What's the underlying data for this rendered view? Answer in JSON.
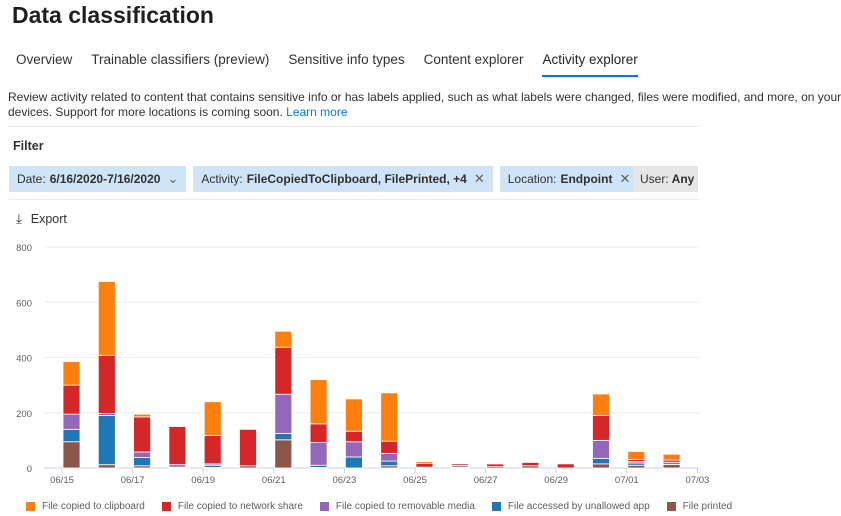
{
  "page_title": "Data classification",
  "tabs": [
    {
      "label": "Overview"
    },
    {
      "label": "Trainable classifiers (preview)"
    },
    {
      "label": "Sensitive info types"
    },
    {
      "label": "Content explorer"
    },
    {
      "label": "Activity explorer",
      "active": true
    }
  ],
  "description": {
    "line1": "Review activity related to content that contains sensitive info or has labels applied, such as what labels were changed, files were modified, and more, on your",
    "line2": "devices. Support for more locations is coming soon.",
    "link": "Learn more"
  },
  "filter": {
    "label": "Filter",
    "chips": [
      {
        "key": "Date:",
        "value": "6/16/2020-7/16/2020",
        "icon": "chevron-down-icon"
      },
      {
        "key": "Activity:",
        "value": "FileCopiedToClipboard, FilePrinted, +4",
        "icon": "close-icon"
      },
      {
        "key": "Location:",
        "value": "Endpoint",
        "icon": "close-icon"
      },
      {
        "key": "User:",
        "value": "Any"
      }
    ]
  },
  "export_label": "Export",
  "chart_data": {
    "type": "bar",
    "stacked": true,
    "ylim": [
      0,
      800
    ],
    "yticks": [
      0,
      200,
      400,
      600,
      800
    ],
    "grid": true,
    "legend": "bottom",
    "categories": [
      "06/15",
      "06/16",
      "06/17",
      "06/18",
      "06/19",
      "06/20",
      "06/21",
      "06/22",
      "06/23",
      "06/24",
      "06/25",
      "06/26",
      "06/27",
      "06/28",
      "06/29",
      "06/30",
      "07/01",
      "07/02"
    ],
    "xtick_labels": [
      "06/15",
      "06/17",
      "06/19",
      "06/21",
      "06/23",
      "06/25",
      "06/27",
      "06/29",
      "07/01",
      "07/03"
    ],
    "series": [
      {
        "name": "File printed",
        "color": "#8c564b",
        "values": [
          95,
          12,
          8,
          0,
          2,
          8,
          102,
          2,
          0,
          8,
          0,
          0,
          5,
          8,
          0,
          15,
          10,
          13
        ]
      },
      {
        "name": "File accessed by unallowed app",
        "color": "#1f77b4",
        "values": [
          45,
          178,
          30,
          3,
          8,
          0,
          23,
          8,
          40,
          17,
          3,
          3,
          0,
          0,
          0,
          20,
          8,
          0
        ]
      },
      {
        "name": "File copied to removable media",
        "color": "#9467bd",
        "values": [
          55,
          7,
          20,
          9,
          5,
          0,
          142,
          82,
          55,
          28,
          0,
          6,
          0,
          0,
          0,
          65,
          5,
          8
        ]
      },
      {
        "name": "File copied to network share",
        "color": "#d62728",
        "values": [
          105,
          211,
          127,
          138,
          103,
          132,
          170,
          68,
          38,
          44,
          14,
          6,
          10,
          12,
          15,
          90,
          8,
          8
        ]
      },
      {
        "name": "File copied to clipboard",
        "color": "#ff7f0e",
        "values": [
          85,
          267,
          10,
          0,
          122,
          0,
          58,
          160,
          117,
          175,
          6,
          0,
          3,
          0,
          0,
          78,
          29,
          21
        ]
      }
    ]
  },
  "legend_order": [
    "File copied to clipboard",
    "File copied to network share",
    "File copied to removable media",
    "File accessed by unallowed app",
    "File printed"
  ]
}
